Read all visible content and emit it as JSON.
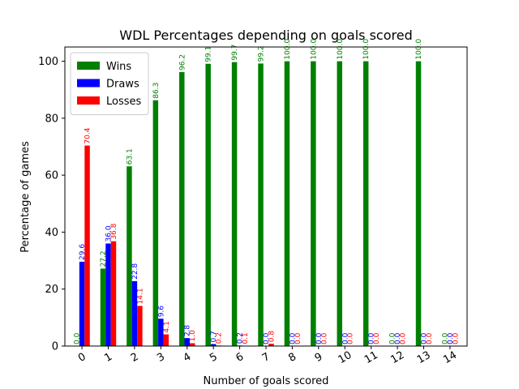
{
  "chart_data": {
    "type": "bar",
    "title": "WDL Percentages depending on goals scored",
    "xlabel": "Number of goals scored",
    "ylabel": "Percentage of games",
    "ylim": [
      0,
      105
    ],
    "yticks": [
      0,
      20,
      40,
      60,
      80,
      100
    ],
    "categories": [
      "0",
      "1",
      "2",
      "3",
      "4",
      "5",
      "6",
      "7",
      "8",
      "9",
      "10",
      "11",
      "12",
      "13",
      "14"
    ],
    "legend_position": "top-left",
    "grid": false,
    "series": [
      {
        "name": "Wins",
        "color": "#008000",
        "values": [
          0.0,
          27.2,
          63.1,
          86.3,
          96.2,
          99.1,
          99.7,
          99.2,
          100.0,
          100.0,
          100.0,
          100.0,
          0.0,
          100.0,
          0.0
        ],
        "labels": [
          "0.0",
          "27.2",
          "63.1",
          "86.3",
          "96.2",
          "99.1",
          "99.7",
          "99.2",
          "100.0",
          "100.0",
          "100.0",
          "100.0",
          "0.0",
          "100.0",
          "0.0"
        ]
      },
      {
        "name": "Draws",
        "color": "#0000ff",
        "values": [
          29.6,
          36.0,
          22.8,
          9.6,
          2.8,
          0.7,
          0.2,
          0.0,
          0.0,
          0.0,
          0.0,
          0.0,
          0.0,
          0.0,
          0.0
        ],
        "labels": [
          "29.6",
          "36.0",
          "22.8",
          "9.6",
          "2.8",
          "0.7",
          "0.2",
          "0.0",
          "0.0",
          "0.0",
          "0.0",
          "0.0",
          "0.0",
          "0.0",
          "0.0"
        ]
      },
      {
        "name": "Losses",
        "color": "#ff0000",
        "values": [
          70.4,
          36.8,
          14.1,
          4.1,
          1.0,
          0.2,
          0.1,
          0.8,
          0.0,
          0.0,
          0.0,
          0.0,
          0.0,
          0.0,
          0.0
        ],
        "labels": [
          "70.4",
          "36.8",
          "14.1",
          "4.1",
          "1.0",
          "0.2",
          "0.1",
          "0.8",
          "0.0",
          "0.0",
          "0.0",
          "0.0",
          "0.0",
          "0.0",
          "0.0"
        ]
      }
    ]
  }
}
